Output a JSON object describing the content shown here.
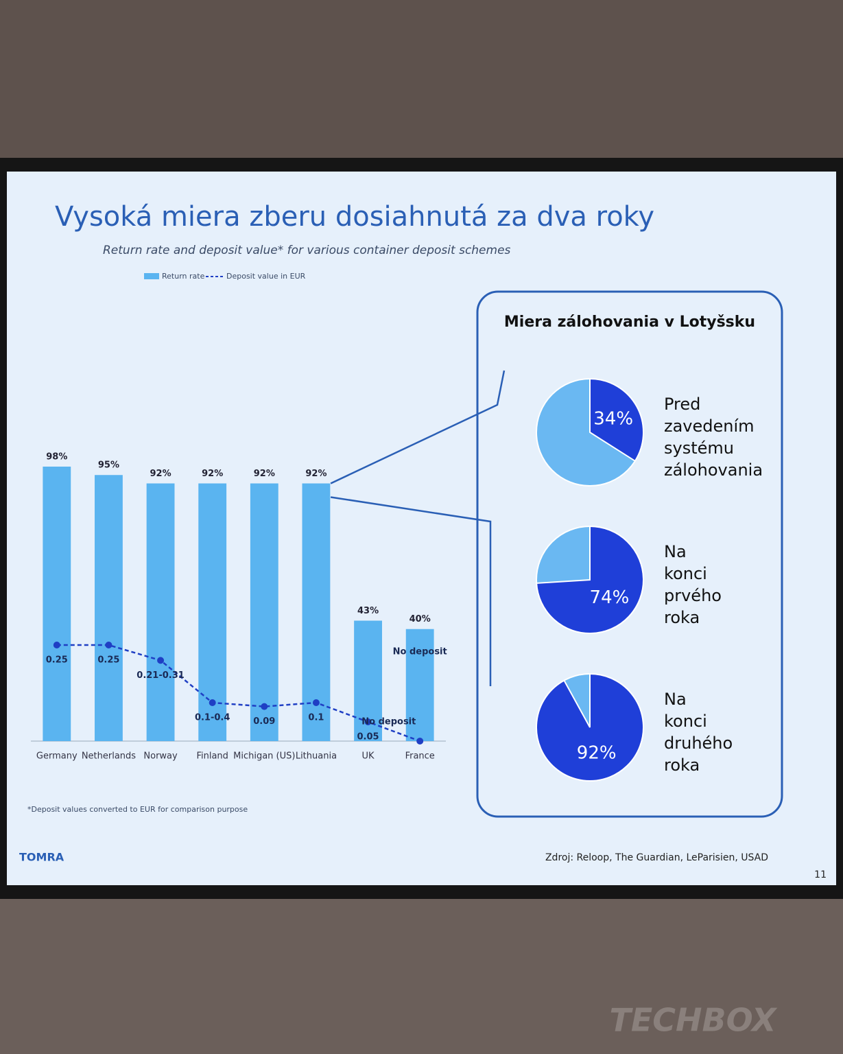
{
  "slide": {
    "title": "Vysoká miera zberu dosiahnutá za dva roky",
    "subtitle": "Return rate and deposit value* for various container deposit schemes",
    "footnote": "*Deposit values converted to EUR for comparison purpose",
    "logo": "TOMRA",
    "source": "Zdroj: Reloop, The Guardian, LeParisien, USAD",
    "page_number": "11",
    "watermark": "TECHBOX"
  },
  "chart_data": [
    {
      "type": "bar-line",
      "categories": [
        "Germany",
        "Netherlands",
        "Norway",
        "Finland",
        "Michigan (US)",
        "Lithuania",
        "UK",
        "France"
      ],
      "series": [
        {
          "name": "Return rate",
          "color": "#5ab4f0",
          "values": [
            98,
            95,
            92,
            92,
            92,
            92,
            43,
            40
          ],
          "value_labels": [
            "98%",
            "95%",
            "92%",
            "92%",
            "92%",
            "92%",
            "43%",
            "40%"
          ]
        },
        {
          "name": "Deposit value in EUR",
          "color": "#1f3fc4",
          "axis": "y2",
          "values": [
            0.25,
            0.25,
            0.21,
            0.1,
            0.09,
            0.1,
            0.05,
            0
          ],
          "value_labels": [
            "0.25",
            "0.25",
            "0.21-0.31",
            "0.1-0.4",
            "0.09",
            "0.1",
            "0.05",
            "No deposit"
          ]
        }
      ],
      "annotations": [
        "No deposit"
      ]
    },
    {
      "type": "pie",
      "title": "Miera zálohovania v Lotyšsku",
      "color": "#1f3fd8",
      "rest_color": "#6ab8f2",
      "pies": [
        {
          "label": "Pred zavedením systému zálohovania",
          "value": 34,
          "value_label": "34%"
        },
        {
          "label": "Na konci prvého roka",
          "value": 74,
          "value_label": "74%"
        },
        {
          "label": "Na konci druhého roka",
          "value": 92,
          "value_label": "92%"
        }
      ]
    }
  ]
}
